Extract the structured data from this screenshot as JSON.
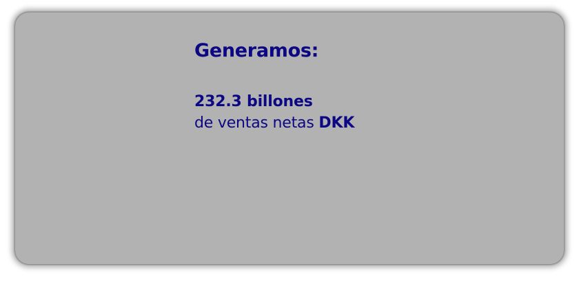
{
  "card": {
    "heading": "Generamos:",
    "metric_value": "232.3 billones",
    "metric_desc": "de ventas netas",
    "metric_unit": "DKK"
  },
  "colors": {
    "card_background": "#b2b2b2",
    "text": "#0c0783",
    "page_background": "#ffffff"
  }
}
